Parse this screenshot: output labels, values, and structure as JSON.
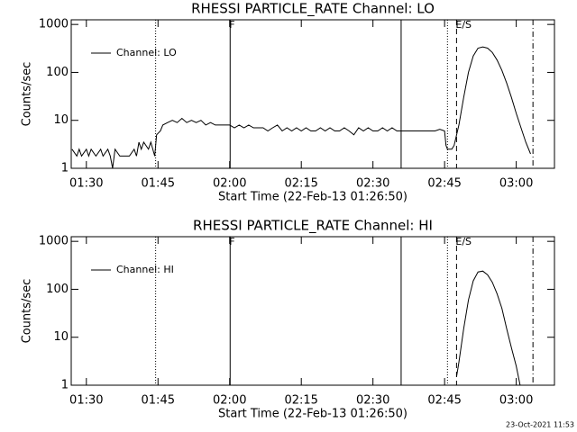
{
  "chart_data": [
    {
      "type": "line",
      "title": "RHESSI PARTICLE_RATE Channel: LO",
      "xlabel": "Start Time (22-Feb-13 01:26:50)",
      "ylabel": "Counts/sec",
      "log_y": true,
      "legend": "upper left",
      "xlim": [
        86.83,
        188
      ],
      "ylim": [
        1,
        1250
      ],
      "xticks": [
        {
          "value": 90,
          "label": "01:30"
        },
        {
          "value": 105,
          "label": "01:45"
        },
        {
          "value": 120,
          "label": "02:00"
        },
        {
          "value": 135,
          "label": "02:15"
        },
        {
          "value": 150,
          "label": "02:30"
        },
        {
          "value": 165,
          "label": "02:45"
        },
        {
          "value": 180,
          "label": "03:00"
        }
      ],
      "yticks": [
        1,
        10,
        100,
        1000
      ],
      "markers": [
        {
          "x": 104.5,
          "style": "dotted"
        },
        {
          "x": 120.1,
          "style": "solid",
          "label": "F"
        },
        {
          "x": 155.9,
          "style": "solid"
        },
        {
          "x": 165.6,
          "style": "dotted"
        },
        {
          "x": 167.5,
          "style": "dashed",
          "label": "E/S"
        },
        {
          "x": 183.5,
          "style": "dashdot"
        }
      ],
      "x": [
        87,
        88,
        88.5,
        89,
        90,
        90.5,
        91,
        92,
        93,
        93.5,
        94.5,
        95,
        95.5,
        96,
        97,
        98,
        99,
        100,
        100.5,
        101,
        101.5,
        102,
        103,
        103.5,
        104.3,
        104.7,
        105.5,
        106,
        107,
        108,
        109,
        110,
        111,
        112,
        113,
        114,
        115,
        116,
        117,
        118,
        119,
        120,
        121,
        122,
        123,
        124,
        125,
        126,
        127,
        128,
        129,
        130,
        131,
        132,
        133,
        134,
        135,
        136,
        137,
        138,
        139,
        140,
        141,
        142,
        143,
        144,
        145,
        146,
        147,
        148,
        149,
        150,
        151,
        152,
        153,
        154,
        155,
        156,
        157,
        158,
        159,
        160,
        161,
        162,
        163,
        164,
        165,
        165.3,
        165.6,
        166.5,
        167,
        168,
        169,
        170,
        171,
        172,
        173,
        174,
        175,
        176,
        177,
        178,
        179,
        180,
        181,
        182,
        183
      ],
      "series": [
        {
          "name": "Channel: LO",
          "color": "#000000",
          "values": [
            2.5,
            1.8,
            2.5,
            1.8,
            2.5,
            1.8,
            2.5,
            1.8,
            2.5,
            1.8,
            2.5,
            1.8,
            1,
            2.5,
            1.8,
            1.8,
            1.8,
            2.5,
            1.8,
            3.5,
            2.5,
            3.5,
            2.5,
            3.5,
            1.8,
            5,
            6,
            8,
            9,
            10,
            9,
            11,
            9,
            10,
            9,
            10,
            8,
            9,
            8,
            8,
            8,
            8,
            7,
            8,
            7,
            8,
            7,
            7,
            7,
            6,
            7,
            8,
            6,
            7,
            6,
            7,
            6,
            7,
            6,
            6,
            7,
            6,
            7,
            6,
            6,
            7,
            6,
            5,
            7,
            6,
            7,
            6,
            6,
            7,
            6,
            7,
            6,
            6,
            6,
            6,
            6,
            6,
            6,
            6,
            6,
            6.5,
            6,
            3,
            2.5,
            2.5,
            3,
            8,
            30,
            100,
            220,
            320,
            340,
            320,
            260,
            180,
            110,
            60,
            30,
            14,
            7,
            3.5,
            2
          ]
        }
      ]
    },
    {
      "type": "line",
      "title": "RHESSI PARTICLE_RATE Channel: HI",
      "xlabel": "Start Time (22-Feb-13 01:26:50)",
      "ylabel": "Counts/sec",
      "log_y": true,
      "legend": "upper left",
      "xlim": [
        86.83,
        188
      ],
      "ylim": [
        1,
        1250
      ],
      "xticks": [
        {
          "value": 90,
          "label": "01:30"
        },
        {
          "value": 105,
          "label": "01:45"
        },
        {
          "value": 120,
          "label": "02:00"
        },
        {
          "value": 135,
          "label": "02:15"
        },
        {
          "value": 150,
          "label": "02:30"
        },
        {
          "value": 165,
          "label": "02:45"
        },
        {
          "value": 180,
          "label": "03:00"
        }
      ],
      "yticks": [
        1,
        10,
        100,
        1000
      ],
      "markers": [
        {
          "x": 104.5,
          "style": "dotted"
        },
        {
          "x": 120.1,
          "style": "solid",
          "label": "F"
        },
        {
          "x": 155.9,
          "style": "solid"
        },
        {
          "x": 165.6,
          "style": "dotted"
        },
        {
          "x": 167.5,
          "style": "dashed",
          "label": "E/S"
        },
        {
          "x": 183.5,
          "style": "dashdot"
        }
      ],
      "x": [
        167.5,
        168,
        169,
        170,
        171,
        172,
        173,
        174,
        175,
        176,
        177,
        178,
        179,
        180,
        180.8
      ],
      "series": [
        {
          "name": "Channel: HI",
          "color": "#000000",
          "values": [
            1.5,
            3,
            15,
            60,
            150,
            230,
            240,
            200,
            140,
            80,
            40,
            15,
            6,
            2.5,
            1
          ]
        }
      ]
    }
  ],
  "footer": "23-Oct-2021 11:53"
}
